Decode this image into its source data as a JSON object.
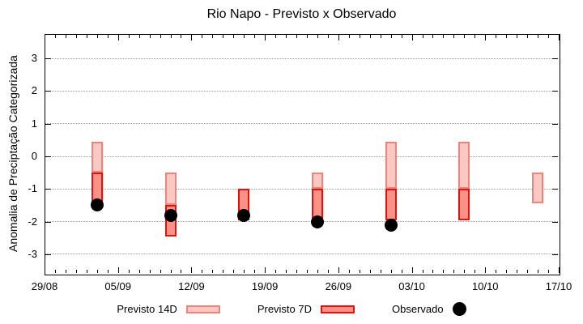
{
  "chart_data": {
    "type": "bar",
    "subtype": "floating-range-bars-with-scatter",
    "title": "Rio Napo - Previsto x Observado",
    "xlabel": "",
    "ylabel": "Anomalia de Preciptação Categorizada",
    "ylim": [
      -3.6,
      3.75
    ],
    "y_ticks": [
      3,
      2,
      1,
      0,
      -1,
      -2,
      -3
    ],
    "grid": "horizontal dotted at integer y values",
    "xlim_days": [
      0,
      49
    ],
    "x_minor_tick_days": 1,
    "x_ticks": [
      {
        "label": "29/08",
        "day": 0
      },
      {
        "label": "05/09",
        "day": 7
      },
      {
        "label": "12/09",
        "day": 14
      },
      {
        "label": "19/09",
        "day": 21
      },
      {
        "label": "26/09",
        "day": 28
      },
      {
        "label": "03/10",
        "day": 35
      },
      {
        "label": "10/10",
        "day": 42
      },
      {
        "label": "17/10",
        "day": 49
      }
    ],
    "series": [
      {
        "name": "Previsto 14D",
        "kind": "range-bar",
        "fill": "#fac8c2",
        "border": "#ef837b",
        "points": [
          {
            "date": "03/09",
            "day": 5,
            "hi": 0.45,
            "lo": -0.5
          },
          {
            "date": "10/09",
            "day": 12,
            "hi": -0.5,
            "lo": -1.5
          },
          {
            "date": "24/09",
            "day": 26,
            "hi": -0.5,
            "lo": -1.0
          },
          {
            "date": "01/10",
            "day": 33,
            "hi": 0.45,
            "lo": -1.0
          },
          {
            "date": "08/10",
            "day": 40,
            "hi": 0.45,
            "lo": -1.0
          },
          {
            "date": "15/10",
            "day": 47,
            "hi": -0.5,
            "lo": -1.45
          }
        ]
      },
      {
        "name": "Previsto 7D",
        "kind": "range-bar",
        "fill": "#fa9189",
        "border": "#e3120b",
        "points": [
          {
            "date": "03/09",
            "day": 5,
            "hi": -0.5,
            "lo": -1.45
          },
          {
            "date": "10/09",
            "day": 12,
            "hi": -1.5,
            "lo": -2.45
          },
          {
            "date": "17/09",
            "day": 19,
            "hi": -1.0,
            "lo": -1.95
          },
          {
            "date": "24/09",
            "day": 26,
            "hi": -1.0,
            "lo": -1.95
          },
          {
            "date": "01/10",
            "day": 33,
            "hi": -1.0,
            "lo": -1.95
          },
          {
            "date": "08/10",
            "day": 40,
            "hi": -1.0,
            "lo": -1.95
          }
        ]
      },
      {
        "name": "Observado",
        "kind": "scatter",
        "color": "#000000",
        "points": [
          {
            "date": "03/09",
            "day": 5,
            "value": -1.5
          },
          {
            "date": "10/09",
            "day": 12,
            "value": -1.8
          },
          {
            "date": "17/09",
            "day": 19,
            "value": -1.8
          },
          {
            "date": "24/09",
            "day": 26,
            "value": -2.0
          },
          {
            "date": "01/10",
            "day": 33,
            "value": -2.1
          }
        ]
      }
    ],
    "legend": {
      "position": "bottom-center",
      "items": [
        "Previsto 14D",
        "Previsto 7D",
        "Observado"
      ]
    }
  },
  "colors": {
    "background": "#ffffff",
    "axis": "#000000",
    "grid": "#999999",
    "text": "#000000"
  }
}
